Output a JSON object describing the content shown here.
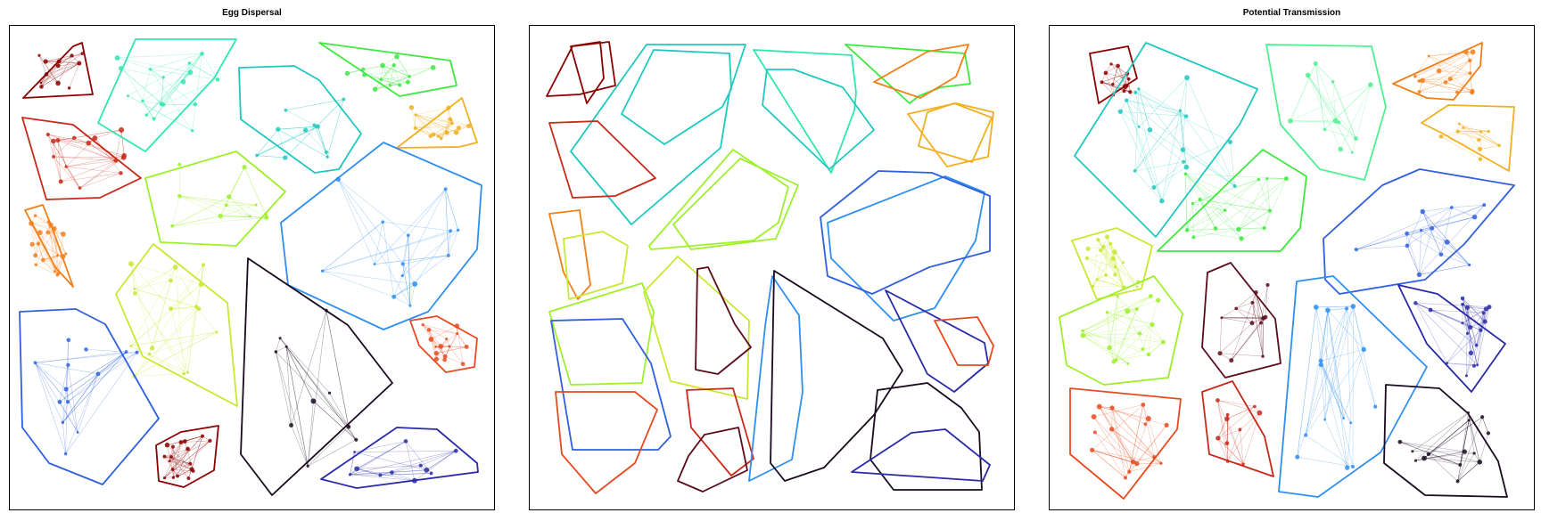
{
  "panels": [
    {
      "title": "Egg Dispersal",
      "variant": "network"
    },
    {
      "title": "",
      "variant": "overlap"
    },
    {
      "title": "Potential Transmission",
      "variant": "network"
    }
  ],
  "palette": [
    "#8b0000",
    "#c62a1a",
    "#f07f1a",
    "#f0b020",
    "#3ee83e",
    "#9ef02a",
    "#c8e832",
    "#2ee8b0",
    "#20c8c0",
    "#2f8ff0",
    "#3060e0",
    "#2a2aa8",
    "#5a0a1a",
    "#1a0a20",
    "#e84a20",
    "#50f090",
    "#00d0d0"
  ]
}
